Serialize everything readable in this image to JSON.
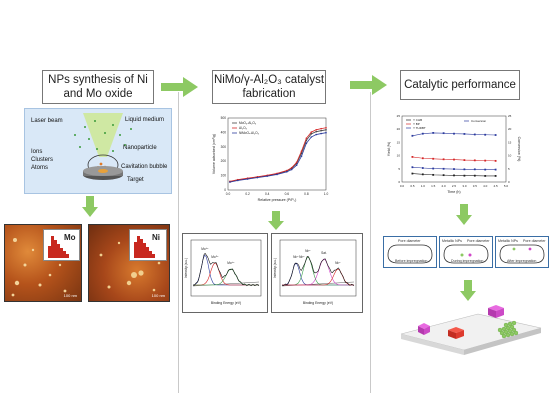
{
  "steps": {
    "s1": "NPs synthesis of Ni\nand Mo oxide",
    "s2": "NiMo/γ-Al₂O₃ catalyst\nfabrication",
    "s3": "Catalytic performance"
  },
  "laser": {
    "laser_beam": "Laser beam",
    "liquid_medium": "Liquid medium",
    "nanoparticle": "Nanoparticle",
    "ions": "Ions",
    "clusters": "Clusters",
    "atoms": "Atoms",
    "cavitation": "Cavitation bubble",
    "target": "Target"
  },
  "afm": {
    "mo_label": "Mo",
    "ni_label": "Ni",
    "scale_mo": "100 nm",
    "scale_ni": "100 nm"
  },
  "impregnation": {
    "b1_top": "Pore diameter",
    "b1_mid": "Before impregnation",
    "b2_left": "Metallic NPs",
    "b2_right": "Pore diameter",
    "b2_mid": "During impregnation",
    "b3_left": "Metallic NPs",
    "b3_right": "Pore diameter",
    "b3_mid": "After impregnation"
  },
  "colors": {
    "arrow_green": "#8dc963",
    "afm_orange": "#b5531b",
    "laser_bg": "#d9e8f7",
    "beam_green": "#cfe8a3"
  },
  "chart_data": [
    {
      "type": "line",
      "title": "",
      "xlabel": "Relative pressure (P/P₀)",
      "ylabel": "Volume adsorbed (cm³/g)",
      "legend": [
        "MoO₃-Al₂O₃",
        "Al₂O₃",
        "NiMoOₓ-Al₂O₃"
      ],
      "xlim": [
        0,
        1.0
      ],
      "ylim": [
        0,
        500
      ],
      "xticks": [
        "0.0",
        "0.2",
        "0.4",
        "0.6",
        "0.8",
        "1.0"
      ],
      "yticks": [
        "0",
        "100",
        "200",
        "300",
        "400",
        "500"
      ],
      "series": [
        {
          "name": "MoO₃-Al₂O₃",
          "color": "#444444",
          "x": [
            0.02,
            0.1,
            0.2,
            0.3,
            0.4,
            0.5,
            0.6,
            0.65,
            0.7,
            0.75,
            0.8,
            0.85,
            0.9,
            0.95,
            1.0
          ],
          "y": [
            58,
            70,
            80,
            90,
            100,
            112,
            132,
            150,
            185,
            255,
            345,
            390,
            405,
            412,
            418
          ]
        },
        {
          "name": "Al₂O₃",
          "color": "#d62728",
          "x": [
            0.02,
            0.1,
            0.2,
            0.3,
            0.4,
            0.5,
            0.6,
            0.65,
            0.7,
            0.75,
            0.8,
            0.85,
            0.9,
            0.95,
            1.0
          ],
          "y": [
            60,
            72,
            82,
            92,
            102,
            115,
            135,
            155,
            192,
            270,
            360,
            402,
            418,
            426,
            432
          ]
        },
        {
          "name": "NiMoOₓ-Al₂O₃",
          "color": "#2c3b9e",
          "x": [
            0.02,
            0.1,
            0.2,
            0.3,
            0.4,
            0.5,
            0.6,
            0.65,
            0.7,
            0.75,
            0.8,
            0.85,
            0.9,
            0.95,
            1.0
          ],
          "y": [
            55,
            66,
            76,
            86,
            96,
            108,
            126,
            142,
            172,
            235,
            325,
            368,
            385,
            392,
            398
          ]
        }
      ]
    },
    {
      "type": "line",
      "title": "",
      "xlabel": "Time (h)",
      "ylabel": "Yield (%)",
      "y2label": "Conversion (%)",
      "legend": [
        "Y CHB",
        "Y BP",
        "Y THDBT",
        "Conversion"
      ],
      "xlim": [
        0,
        5
      ],
      "ylim": [
        0,
        25
      ],
      "y2lim": [
        0,
        25
      ],
      "xticks": [
        "0.0",
        "0.5",
        "1.0",
        "1.5",
        "2.0",
        "2.5",
        "3.0",
        "3.5",
        "4.0",
        "4.5",
        "5.0"
      ],
      "yticks": [
        "0",
        "5",
        "10",
        "15",
        "20",
        "25"
      ],
      "series": [
        {
          "name": "Y CHB",
          "color": "#222222",
          "x": [
            0.5,
            1,
            1.5,
            2,
            2.5,
            3,
            3.5,
            4,
            4.5
          ],
          "y": [
            3.2,
            2.9,
            2.7,
            2.6,
            2.5,
            2.4,
            2.4,
            2.3,
            2.3
          ]
        },
        {
          "name": "Y BP",
          "color": "#d62728",
          "x": [
            0.5,
            1,
            1.5,
            2,
            2.5,
            3,
            3.5,
            4,
            4.5
          ],
          "y": [
            9.5,
            9.0,
            8.8,
            8.6,
            8.5,
            8.3,
            8.2,
            8.1,
            8.0
          ]
        },
        {
          "name": "Y THDBT",
          "color": "#2c3b9e",
          "x": [
            0.5,
            1,
            1.5,
            2,
            2.5,
            3,
            3.5,
            4,
            4.5
          ],
          "y": [
            5.6,
            5.3,
            5.1,
            5.0,
            4.9,
            4.8,
            4.8,
            4.7,
            4.7
          ]
        },
        {
          "name": "Conversion",
          "color": "#2c3b9e",
          "x": [
            0.5,
            1,
            1.5,
            2,
            2.5,
            3,
            3.5,
            4,
            4.5
          ],
          "y": [
            17.5,
            18.3,
            18.6,
            18.5,
            18.3,
            18.2,
            18.0,
            17.9,
            17.8
          ]
        }
      ]
    },
    {
      "type": "line",
      "title": "",
      "label": "Mo 3d",
      "xlabel": "Binding Energy (eV)",
      "ylabel": "Intensity (a.u.)",
      "annotations": [
        "Mo⁶⁺",
        "Mo⁵⁺",
        "Mo⁴⁺"
      ]
    },
    {
      "type": "line",
      "title": "",
      "label": "Ni 2p",
      "xlabel": "Binding Energy (eV)",
      "ylabel": "Intensity (a.u.)",
      "annotations": [
        "Ni²⁺",
        "Ni³⁺",
        "Sat.",
        "Ni²⁺",
        "Ni³⁺"
      ]
    }
  ]
}
